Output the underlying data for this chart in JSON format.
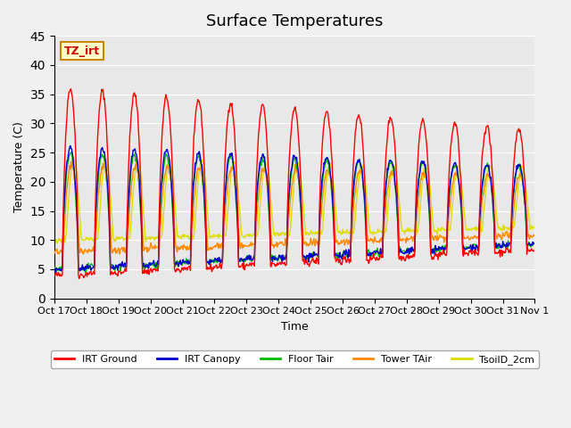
{
  "title": "Surface Temperatures",
  "ylabel": "Temperature (C)",
  "xlabel": "Time",
  "ylim": [
    0,
    45
  ],
  "bg_color": "#e8e8e8",
  "x_tick_labels": [
    "Oct 17",
    "Oct 18",
    "Oct 19",
    "Oct 20",
    "Oct 21",
    "Oct 22",
    "Oct 23",
    "Oct 24",
    "Oct 25",
    "Oct 26",
    "Oct 27",
    "Oct 28",
    "Oct 29",
    "Oct 30",
    "Oct 31",
    "Nov 1"
  ],
  "tz_label": "TZ_irt",
  "legend_entries": [
    {
      "label": "IRT Ground",
      "color": "#ff0000"
    },
    {
      "label": "IRT Canopy",
      "color": "#0000cc"
    },
    {
      "label": "Floor Tair",
      "color": "#00bb00"
    },
    {
      "label": "Tower TAir",
      "color": "#ff8800"
    },
    {
      "label": "TsoilD_2cm",
      "color": "#dddd00"
    }
  ],
  "num_days": 15,
  "pts_per_day": 48
}
